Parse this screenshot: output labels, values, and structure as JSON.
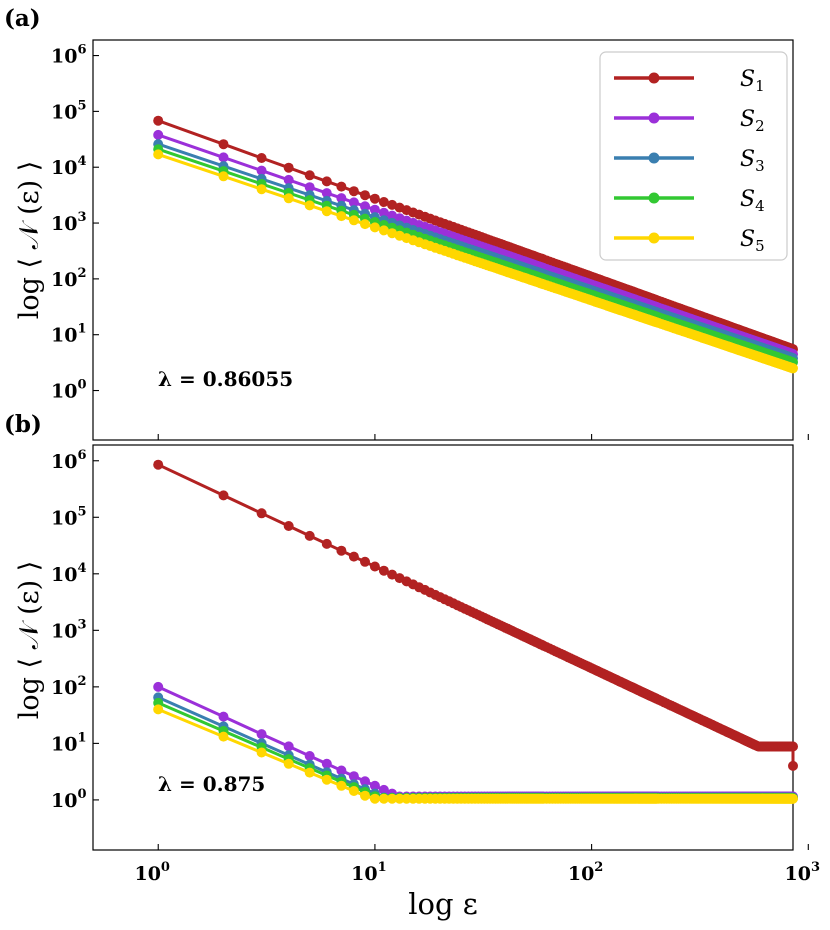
{
  "figure": {
    "x_axis_label": "log ε",
    "y_axis_label": "log ⟨ 𝒩 (ε) ⟩",
    "legend": [
      {
        "name": "S",
        "sub": "1",
        "color": "#b22222"
      },
      {
        "name": "S",
        "sub": "2",
        "color": "#9b30d9"
      },
      {
        "name": "S",
        "sub": "3",
        "color": "#3a7fb0"
      },
      {
        "name": "S",
        "sub": "4",
        "color": "#32c832"
      },
      {
        "name": "S",
        "sub": "5",
        "color": "#ffd700"
      }
    ],
    "x_ticks": [
      {
        "base": "10",
        "exp": "0"
      },
      {
        "base": "10",
        "exp": "1"
      },
      {
        "base": "10",
        "exp": "2"
      },
      {
        "base": "10",
        "exp": "3"
      }
    ],
    "y_ticks": [
      {
        "base": "10",
        "exp": "0"
      },
      {
        "base": "10",
        "exp": "1"
      },
      {
        "base": "10",
        "exp": "2"
      },
      {
        "base": "10",
        "exp": "3"
      },
      {
        "base": "10",
        "exp": "4"
      },
      {
        "base": "10",
        "exp": "5"
      },
      {
        "base": "10",
        "exp": "6"
      }
    ]
  },
  "chart_data": [
    {
      "type": "line",
      "panel": "(a)",
      "annotation": "λ = 0.86055",
      "xscale": "log",
      "yscale": "log",
      "xlim": [
        0.5,
        850
      ],
      "ylim": [
        0.13,
        1900000
      ],
      "xlabel": "log ε",
      "ylabel": "log ⟨ 𝒩 (ε) ⟩",
      "x": [
        1,
        1000
      ],
      "series": [
        {
          "name": "S1",
          "color": "#b22222",
          "start": 68000,
          "end": 5.5,
          "exponent": 1.42
        },
        {
          "name": "S2",
          "color": "#9b30d9",
          "start": 38000,
          "end": 4.5,
          "exponent": 1.4
        },
        {
          "name": "S3",
          "color": "#3a7fb0",
          "start": 26000,
          "end": 3.8,
          "exponent": 1.39
        },
        {
          "name": "S4",
          "color": "#32c832",
          "start": 21000,
          "end": 3.2,
          "exponent": 1.39
        },
        {
          "name": "S5",
          "color": "#ffd700",
          "start": 17000,
          "end": 2.5,
          "exponent": 1.38
        }
      ]
    },
    {
      "type": "line",
      "panel": "(b)",
      "annotation": "λ = 0.875",
      "xscale": "log",
      "yscale": "log",
      "xlim": [
        0.5,
        850
      ],
      "ylim": [
        0.13,
        1900000
      ],
      "xlabel": "log ε",
      "ylabel": "log ⟨ 𝒩 (ε) ⟩",
      "x": [
        1,
        1000
      ],
      "series": [
        {
          "name": "S1",
          "color": "#b22222",
          "start": 850000,
          "end": 8.8,
          "drop_to": 4.0,
          "exponent": 1.8
        },
        {
          "name": "S2",
          "color": "#9b30d9",
          "start": 100,
          "end": 1.15,
          "exponent": 1.75
        },
        {
          "name": "S3",
          "color": "#3a7fb0",
          "start": 65,
          "end": 1.1,
          "exponent": 1.7
        },
        {
          "name": "S4",
          "color": "#32c832",
          "start": 52,
          "end": 1.08,
          "exponent": 1.65
        },
        {
          "name": "S5",
          "color": "#ffd700",
          "start": 40,
          "end": 1.05,
          "exponent": 1.6
        }
      ]
    }
  ]
}
